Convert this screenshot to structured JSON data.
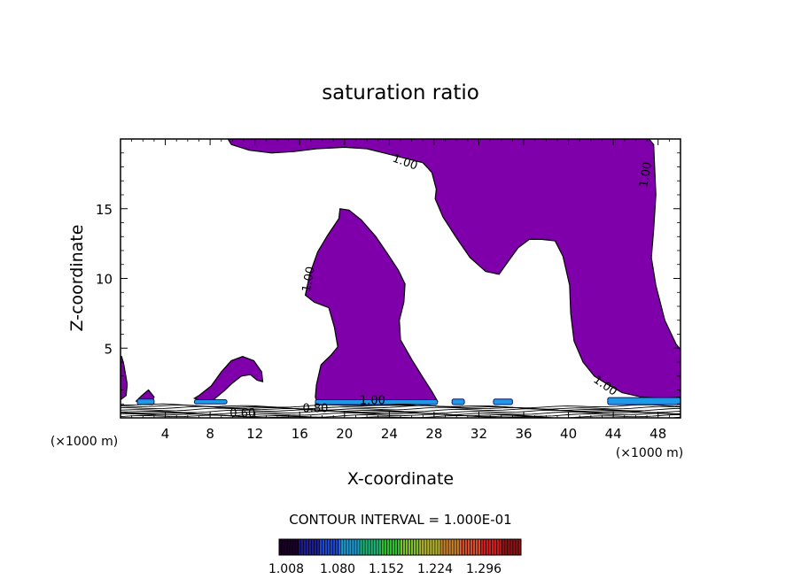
{
  "chart_data": {
    "type": "contour",
    "title": "saturation ratio",
    "xlabel": "X-coordinate",
    "ylabel": "Z-coordinate",
    "x_unit_note_left": "(×1000 m)",
    "x_unit_note_right": "(×1000 m)",
    "xlim": [
      0,
      50
    ],
    "ylim": [
      0,
      20
    ],
    "x_ticks": [
      4,
      8,
      12,
      16,
      20,
      24,
      28,
      32,
      36,
      40,
      44,
      48
    ],
    "y_ticks": [
      5,
      10,
      15
    ],
    "contour_interval_text": "CONTOUR INTERVAL = 1.000E-01",
    "contour_labels": [
      {
        "text": "1.00",
        "x": 25.3,
        "y": 18.1,
        "rot": 20
      },
      {
        "text": "1.00",
        "x": 47.2,
        "y": 17.4,
        "rot": -80
      },
      {
        "text": "1.00",
        "x": 17.1,
        "y": 9.9,
        "rot": -80
      },
      {
        "text": "1.00",
        "x": 43.1,
        "y": 2.1,
        "rot": 35
      },
      {
        "text": "1.00",
        "x": 22.5,
        "y": 1.0,
        "rot": 0
      },
      {
        "text": "0.80",
        "x": 17.4,
        "y": 0.4,
        "rot": 0
      },
      {
        "text": "0.60",
        "x": 10.9,
        "y": 0.05,
        "rot": 0
      }
    ],
    "supersaturated_regions": [
      {
        "name": "upper-region",
        "points": [
          [
            9.6,
            20
          ],
          [
            9.9,
            19.6
          ],
          [
            11.5,
            19.2
          ],
          [
            13.5,
            19.0
          ],
          [
            15.5,
            19.1
          ],
          [
            17.5,
            19.3
          ],
          [
            20,
            19.4
          ],
          [
            22,
            19.3
          ],
          [
            24,
            18.9
          ],
          [
            25.5,
            18.6
          ],
          [
            27,
            18.3
          ],
          [
            27.8,
            17.6
          ],
          [
            28.2,
            16.4
          ],
          [
            28.1,
            15.7
          ],
          [
            28.8,
            14.4
          ],
          [
            30,
            12.9
          ],
          [
            31.2,
            11.5
          ],
          [
            32.6,
            10.5
          ],
          [
            33.8,
            10.3
          ],
          [
            34.6,
            11.2
          ],
          [
            35.5,
            12.2
          ],
          [
            36.5,
            12.8
          ],
          [
            37.6,
            12.8
          ],
          [
            38.8,
            12.7
          ],
          [
            39.5,
            11.6
          ],
          [
            40.1,
            9.5
          ],
          [
            40.2,
            7.5
          ],
          [
            40.5,
            5.5
          ],
          [
            41.3,
            4.0
          ],
          [
            42.3,
            3.0
          ],
          [
            43.5,
            2.4
          ],
          [
            44.8,
            1.8
          ],
          [
            46.5,
            1.5
          ],
          [
            48.5,
            1.4
          ],
          [
            50,
            1.5
          ],
          [
            50,
            4.9
          ],
          [
            49.6,
            5.3
          ],
          [
            48.6,
            7.0
          ],
          [
            47.8,
            9.5
          ],
          [
            47.4,
            11.5
          ],
          [
            47.6,
            13.5
          ],
          [
            47.8,
            16.0
          ],
          [
            47.6,
            19.6
          ],
          [
            47.2,
            20
          ]
        ]
      },
      {
        "name": "center-plume",
        "points": [
          [
            17.6,
            1.0
          ],
          [
            17.4,
            1.5
          ],
          [
            17.5,
            2.4
          ],
          [
            17.9,
            3.8
          ],
          [
            18.8,
            4.5
          ],
          [
            19.4,
            5.1
          ],
          [
            19.1,
            6.5
          ],
          [
            18.6,
            7.9
          ],
          [
            17.3,
            8.3
          ],
          [
            16.5,
            8.8
          ],
          [
            16.9,
            10.3
          ],
          [
            17.6,
            11.9
          ],
          [
            18.5,
            13.1
          ],
          [
            19.5,
            14.3
          ],
          [
            19.6,
            15.0
          ],
          [
            20.4,
            14.9
          ],
          [
            21.5,
            14.2
          ],
          [
            22.8,
            13.0
          ],
          [
            23.9,
            11.7
          ],
          [
            24.8,
            10.6
          ],
          [
            25.4,
            9.6
          ],
          [
            25.3,
            8.3
          ],
          [
            24.9,
            7.0
          ],
          [
            25.0,
            5.6
          ],
          [
            26.0,
            4.2
          ],
          [
            27.0,
            2.9
          ],
          [
            27.8,
            1.9
          ],
          [
            28.3,
            1.2
          ],
          [
            26,
            0.9
          ],
          [
            23,
            0.9
          ],
          [
            20,
            0.9
          ]
        ]
      },
      {
        "name": "small-arch",
        "points": [
          [
            6.6,
            1.4
          ],
          [
            7.0,
            1.6
          ],
          [
            8.1,
            2.3
          ],
          [
            9.0,
            3.3
          ],
          [
            9.9,
            4.1
          ],
          [
            10.9,
            4.4
          ],
          [
            11.9,
            4.1
          ],
          [
            12.6,
            3.3
          ],
          [
            12.7,
            2.6
          ],
          [
            12.2,
            2.7
          ],
          [
            11.6,
            3.1
          ],
          [
            10.8,
            3.0
          ],
          [
            10.0,
            2.5
          ],
          [
            9.2,
            1.9
          ],
          [
            8.3,
            1.3
          ],
          [
            7.4,
            1.2
          ]
        ]
      },
      {
        "name": "left-edge-blob",
        "points": [
          [
            0,
            1.3
          ],
          [
            0.5,
            1.6
          ],
          [
            0.6,
            2.4
          ],
          [
            0.3,
            3.8
          ],
          [
            0.1,
            4.4
          ],
          [
            0,
            4.4
          ]
        ]
      },
      {
        "name": "small-blob-x2",
        "points": [
          [
            1.4,
            1.2
          ],
          [
            1.9,
            1.6
          ],
          [
            2.5,
            2.0
          ],
          [
            3.0,
            1.5
          ],
          [
            2.8,
            1.1
          ],
          [
            2.0,
            1.0
          ]
        ]
      }
    ],
    "blue_patches": [
      {
        "x0": 1.5,
        "x1": 3.0,
        "y0": 0.95,
        "y1": 1.35
      },
      {
        "x0": 6.6,
        "x1": 9.5,
        "y0": 1.0,
        "y1": 1.3
      },
      {
        "x0": 17.4,
        "x1": 28.3,
        "y0": 0.95,
        "y1": 1.3
      },
      {
        "x0": 29.6,
        "x1": 30.7,
        "y0": 0.95,
        "y1": 1.35
      },
      {
        "x0": 33.3,
        "x1": 35.0,
        "y0": 0.95,
        "y1": 1.35
      },
      {
        "x0": 43.5,
        "x1": 50.0,
        "y0": 0.95,
        "y1": 1.45
      }
    ],
    "colorbar": {
      "colors": [
        "#1a0028",
        "#1e1e8c",
        "#1e46c8",
        "#1e9ad2",
        "#1eb478",
        "#32be32",
        "#82be32",
        "#b4b432",
        "#c8822d",
        "#d2502d",
        "#c81e1e",
        "#8c1414"
      ],
      "tick_labels": [
        "1.008",
        "1.080",
        "1.152",
        "1.224",
        "1.296"
      ],
      "min": 1.008,
      "max": 1.37
    },
    "region_fill_color": "#7f00aa",
    "edge_color": "#000000",
    "colormap_blue": "#1e9ae6"
  }
}
